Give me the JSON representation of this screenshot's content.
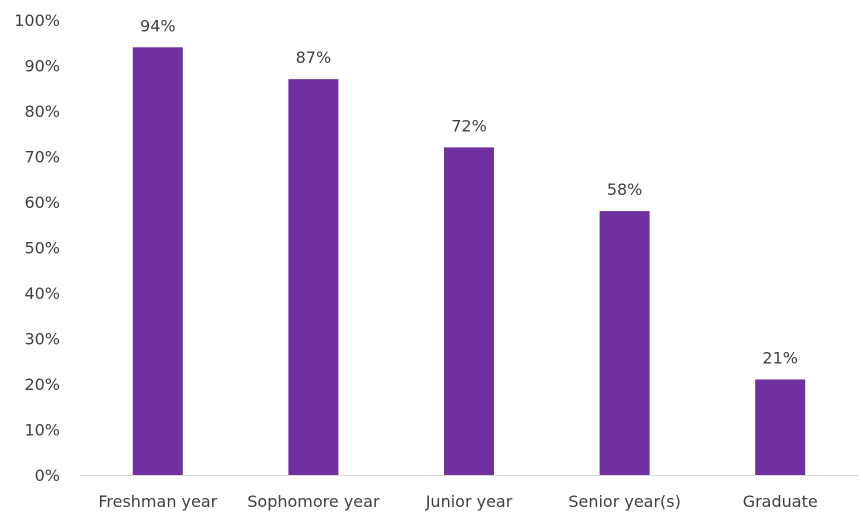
{
  "chart_data": {
    "type": "bar",
    "categories": [
      "Freshman year",
      "Sophomore year",
      "Junior year",
      "Senior year(s)",
      "Graduate"
    ],
    "values": [
      94,
      87,
      72,
      58,
      21
    ],
    "data_labels": [
      "94%",
      "87%",
      "72%",
      "58%",
      "21%"
    ],
    "y_ticks": [
      0,
      10,
      20,
      30,
      40,
      50,
      60,
      70,
      80,
      90,
      100
    ],
    "y_tick_labels": [
      "0%",
      "10%",
      "20%",
      "30%",
      "40%",
      "50%",
      "60%",
      "70%",
      "80%",
      "90%",
      "100%"
    ],
    "ylim": [
      0,
      100
    ],
    "grid": false,
    "legend": "none",
    "bar_color": "#7030A0",
    "axis_color": "#D9D9D9",
    "text_color": "#404040"
  }
}
